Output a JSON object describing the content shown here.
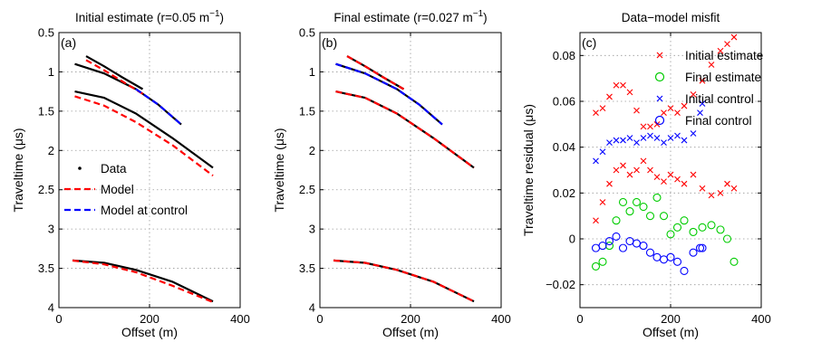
{
  "chart_data": [
    {
      "type": "line",
      "panel_label": "(a)",
      "title": "Initial estimate (r=0.05 m",
      "title_exp": "−1",
      "title_close": ")",
      "xlabel": "Offset (m)",
      "ylabel": "Traveltime (μs)",
      "xlim": [
        0,
        400
      ],
      "ylim": [
        0.5,
        4
      ],
      "y_reversed": true,
      "xticks": [
        "0",
        "200",
        "400"
      ],
      "yticks": [
        "0.5",
        "1",
        "1.5",
        "2",
        "2.5",
        "3",
        "3.5",
        "4"
      ],
      "grid": true,
      "legend": {
        "position": "bottom-left",
        "entries": [
          {
            "label": "Data",
            "style": "dot",
            "color": "#000000"
          },
          {
            "label": "Model",
            "style": "dashed",
            "color": "#ff0000"
          },
          {
            "label": "Model at control",
            "style": "dashed",
            "color": "#0000ff"
          }
        ]
      },
      "series": [
        {
          "role": "data",
          "color": "#000000",
          "x": [
            60,
            100,
            140,
            185
          ],
          "y": [
            0.8,
            0.93,
            1.07,
            1.22
          ]
        },
        {
          "role": "data",
          "color": "#000000",
          "x": [
            35,
            100,
            170,
            220,
            270
          ],
          "y": [
            0.9,
            1.02,
            1.22,
            1.42,
            1.67
          ]
        },
        {
          "role": "data",
          "color": "#000000",
          "x": [
            35,
            100,
            170,
            250,
            340
          ],
          "y": [
            1.25,
            1.33,
            1.53,
            1.84,
            2.22
          ]
        },
        {
          "role": "data",
          "color": "#000000",
          "x": [
            30,
            100,
            170,
            250,
            340
          ],
          "y": [
            3.4,
            3.43,
            3.52,
            3.67,
            3.92
          ]
        },
        {
          "role": "model",
          "color": "#ff0000",
          "x": [
            60,
            100,
            140,
            185
          ],
          "y": [
            0.85,
            0.98,
            1.12,
            1.28
          ]
        },
        {
          "role": "model",
          "color": "#ff0000",
          "x": [
            35,
            100,
            170,
            250,
            340
          ],
          "y": [
            1.31,
            1.43,
            1.64,
            1.93,
            2.32
          ]
        },
        {
          "role": "model",
          "color": "#ff0000",
          "x": [
            30,
            100,
            170,
            250,
            340
          ],
          "y": [
            3.4,
            3.45,
            3.55,
            3.72,
            3.93
          ]
        },
        {
          "role": "model at control",
          "color": "#0000ff",
          "x": [
            170,
            220,
            270
          ],
          "y": [
            1.22,
            1.42,
            1.67
          ]
        }
      ]
    },
    {
      "type": "line",
      "panel_label": "(b)",
      "title": "Final estimate (r=0.027 m",
      "title_exp": "−1",
      "title_close": ")",
      "xlabel": "Offset (m)",
      "ylabel": "Traveltime (μs)",
      "xlim": [
        0,
        400
      ],
      "ylim": [
        0.5,
        4
      ],
      "y_reversed": true,
      "xticks": [
        "0",
        "200",
        "400"
      ],
      "yticks": [
        "0.5",
        "1",
        "1.5",
        "2",
        "2.5",
        "3",
        "3.5",
        "4"
      ],
      "grid": true,
      "series": [
        {
          "role": "data",
          "color": "#000000",
          "x": [
            60,
            100,
            140,
            185
          ],
          "y": [
            0.8,
            0.93,
            1.07,
            1.22
          ]
        },
        {
          "role": "data",
          "color": "#000000",
          "x": [
            35,
            100,
            170,
            220,
            270
          ],
          "y": [
            0.9,
            1.02,
            1.22,
            1.42,
            1.67
          ]
        },
        {
          "role": "data",
          "color": "#000000",
          "x": [
            35,
            100,
            170,
            250,
            340
          ],
          "y": [
            1.25,
            1.33,
            1.53,
            1.84,
            2.22
          ]
        },
        {
          "role": "data",
          "color": "#000000",
          "x": [
            30,
            100,
            170,
            250,
            340
          ],
          "y": [
            3.4,
            3.43,
            3.52,
            3.67,
            3.92
          ]
        },
        {
          "role": "model",
          "color": "#ff0000",
          "x": [
            60,
            100,
            140,
            185
          ],
          "y": [
            0.8,
            0.93,
            1.07,
            1.22
          ]
        },
        {
          "role": "model",
          "color": "#ff0000",
          "x": [
            35,
            100,
            170,
            250,
            340
          ],
          "y": [
            1.25,
            1.33,
            1.53,
            1.84,
            2.22
          ]
        },
        {
          "role": "model",
          "color": "#ff0000",
          "x": [
            30,
            100,
            170,
            250,
            340
          ],
          "y": [
            3.4,
            3.43,
            3.52,
            3.67,
            3.92
          ]
        },
        {
          "role": "model at control",
          "color": "#0000ff",
          "x": [
            35,
            100,
            170,
            220,
            270
          ],
          "y": [
            0.9,
            1.02,
            1.22,
            1.42,
            1.67
          ]
        }
      ]
    },
    {
      "type": "scatter",
      "panel_label": "(c)",
      "title": "Data−model misfit",
      "xlabel": "Offset (m)",
      "ylabel": "Traveltime residual (μs)",
      "xlim": [
        0,
        400
      ],
      "ylim": [
        -0.03,
        0.09
      ],
      "xticks": [
        "0",
        "200",
        "400"
      ],
      "yticks": [
        "−0.02",
        "0",
        "0.02",
        "0.04",
        "0.06",
        "0.08"
      ],
      "grid": true,
      "legend": {
        "position": "top-right",
        "entries": [
          {
            "label": "Initial estimate",
            "marker": "x",
            "color": "#ff0000"
          },
          {
            "label": "Final estimate",
            "marker": "o",
            "color": "#00cc00"
          },
          {
            "label": "Initial control",
            "marker": "x",
            "color": "#0000ff"
          },
          {
            "label": "Final control",
            "marker": "o",
            "color": "#0000ff"
          }
        ]
      },
      "series": [
        {
          "name": "Initial estimate",
          "marker": "x",
          "color": "#ff0000",
          "description": "upper band",
          "x": [
            35,
            50,
            65,
            80,
            95,
            110,
            125,
            140,
            155,
            170,
            185,
            200,
            215,
            230,
            250,
            270,
            290,
            310,
            325,
            340
          ],
          "y": [
            0.055,
            0.057,
            0.062,
            0.067,
            0.067,
            0.064,
            0.056,
            0.049,
            0.049,
            0.05,
            0.055,
            0.057,
            0.055,
            0.058,
            0.063,
            0.069,
            0.076,
            0.082,
            0.085,
            0.088
          ]
        },
        {
          "name": "Initial estimate",
          "marker": "x",
          "color": "#ff0000",
          "description": "lower band",
          "x": [
            35,
            50,
            65,
            80,
            95,
            110,
            125,
            140,
            155,
            170,
            185,
            200,
            215,
            230,
            250,
            270,
            290,
            310,
            325,
            340
          ],
          "y": [
            0.008,
            0.016,
            0.024,
            0.03,
            0.032,
            0.028,
            0.03,
            0.034,
            0.03,
            0.027,
            0.025,
            0.028,
            0.026,
            0.024,
            0.028,
            0.022,
            0.019,
            0.02,
            0.024,
            0.022
          ]
        },
        {
          "name": "Final estimate",
          "marker": "o",
          "color": "#00cc00",
          "x": [
            35,
            50,
            65,
            80,
            95,
            110,
            125,
            140,
            155,
            170,
            185,
            200,
            215,
            230,
            250,
            270,
            290,
            310,
            325,
            340
          ],
          "y": [
            -0.012,
            -0.01,
            -0.003,
            0.008,
            0.016,
            0.012,
            0.016,
            0.014,
            0.01,
            0.018,
            0.01,
            0.002,
            0.005,
            0.008,
            0.003,
            0.005,
            0.006,
            0.004,
            0.0,
            -0.01
          ]
        },
        {
          "name": "Initial control",
          "marker": "x",
          "color": "#0000ff",
          "x": [
            35,
            50,
            65,
            80,
            95,
            110,
            125,
            140,
            155,
            170,
            185,
            200,
            215,
            230,
            250,
            265,
            270
          ],
          "y": [
            0.034,
            0.038,
            0.042,
            0.043,
            0.043,
            0.044,
            0.042,
            0.044,
            0.045,
            0.044,
            0.042,
            0.044,
            0.045,
            0.043,
            0.046,
            0.055,
            0.059
          ]
        },
        {
          "name": "Final control",
          "marker": "o",
          "color": "#0000ff",
          "x": [
            35,
            50,
            65,
            80,
            95,
            110,
            125,
            140,
            155,
            170,
            185,
            200,
            215,
            230,
            250,
            265,
            270
          ],
          "y": [
            -0.004,
            -0.003,
            -0.001,
            0.001,
            -0.004,
            -0.001,
            -0.002,
            -0.003,
            -0.006,
            -0.008,
            -0.009,
            -0.008,
            -0.01,
            -0.014,
            -0.006,
            -0.004,
            -0.004
          ]
        }
      ]
    }
  ]
}
